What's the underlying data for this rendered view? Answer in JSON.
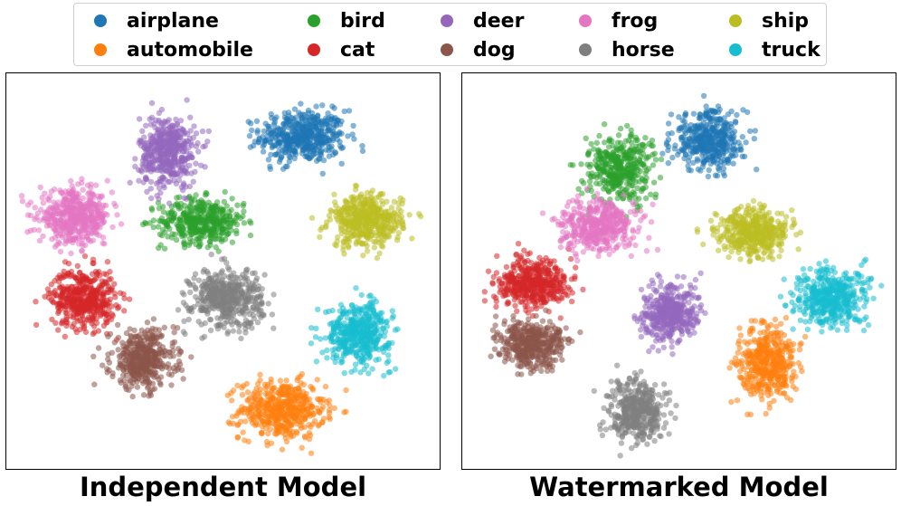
{
  "chart_data": [
    {
      "type": "scatter",
      "title": "Independent Model",
      "xlim": [
        0,
        100
      ],
      "ylim": [
        0,
        100
      ],
      "grid": false,
      "legend_placement": "top-center",
      "clusters": [
        {
          "name": "airplane",
          "color": "#1f77b4",
          "center": [
            69,
            85
          ],
          "spread": [
            12,
            8
          ],
          "count": 480
        },
        {
          "name": "automobile",
          "color": "#ff7f0e",
          "center": [
            64,
            14
          ],
          "spread": [
            12,
            9
          ],
          "count": 480
        },
        {
          "name": "bird",
          "color": "#2ca02c",
          "center": [
            45,
            63
          ],
          "spread": [
            12,
            7
          ],
          "count": 420
        },
        {
          "name": "cat",
          "color": "#d62728",
          "center": [
            17,
            43
          ],
          "spread": [
            9,
            9
          ],
          "count": 460
        },
        {
          "name": "deer",
          "color": "#9467bd",
          "center": [
            37,
            81
          ],
          "spread": [
            8,
            11
          ],
          "count": 460
        },
        {
          "name": "dog",
          "color": "#8c564b",
          "center": [
            31,
            27
          ],
          "spread": [
            9,
            9
          ],
          "count": 440
        },
        {
          "name": "frog",
          "color": "#e377c2",
          "center": [
            15,
            64
          ],
          "spread": [
            10,
            8
          ],
          "count": 480
        },
        {
          "name": "horse",
          "color": "#7f7f7f",
          "center": [
            51,
            43
          ],
          "spread": [
            10,
            9
          ],
          "count": 460
        },
        {
          "name": "ship",
          "color": "#bcbd22",
          "center": [
            84,
            63
          ],
          "spread": [
            10,
            8
          ],
          "count": 460
        },
        {
          "name": "truck",
          "color": "#17becf",
          "center": [
            82,
            34
          ],
          "spread": [
            9,
            9
          ],
          "count": 460
        }
      ]
    },
    {
      "type": "scatter",
      "title": "Watermarked Model",
      "xlim": [
        0,
        100
      ],
      "ylim": [
        0,
        100
      ],
      "grid": false,
      "legend_placement": "top-center",
      "clusters": [
        {
          "name": "airplane",
          "color": "#1f77b4",
          "center": [
            57,
            84
          ],
          "spread": [
            10,
            9
          ],
          "count": 420
        },
        {
          "name": "automobile",
          "color": "#ff7f0e",
          "center": [
            71,
            26
          ],
          "spread": [
            8,
            11
          ],
          "count": 440
        },
        {
          "name": "bird",
          "color": "#2ca02c",
          "center": [
            36,
            77
          ],
          "spread": [
            9,
            10
          ],
          "count": 400
        },
        {
          "name": "cat",
          "color": "#d62728",
          "center": [
            15,
            47
          ],
          "spread": [
            10,
            8
          ],
          "count": 440
        },
        {
          "name": "deer",
          "color": "#9467bd",
          "center": [
            48,
            39
          ],
          "spread": [
            8,
            9
          ],
          "count": 420
        },
        {
          "name": "dog",
          "color": "#8c564b",
          "center": [
            15,
            31
          ],
          "spread": [
            9,
            7
          ],
          "count": 420
        },
        {
          "name": "frog",
          "color": "#e377c2",
          "center": [
            31,
            62
          ],
          "spread": [
            11,
            8
          ],
          "count": 440
        },
        {
          "name": "horse",
          "color": "#7f7f7f",
          "center": [
            40,
            14
          ],
          "spread": [
            8,
            10
          ],
          "count": 420
        },
        {
          "name": "ship",
          "color": "#bcbd22",
          "center": [
            67,
            60
          ],
          "spread": [
            10,
            7
          ],
          "count": 420
        },
        {
          "name": "truck",
          "color": "#17becf",
          "center": [
            86,
            43
          ],
          "spread": [
            10,
            9
          ],
          "count": 440
        }
      ]
    }
  ],
  "legend": {
    "items": [
      {
        "label": "airplane",
        "color": "#1f77b4"
      },
      {
        "label": "automobile",
        "color": "#ff7f0e"
      },
      {
        "label": "bird",
        "color": "#2ca02c"
      },
      {
        "label": "cat",
        "color": "#d62728"
      },
      {
        "label": "deer",
        "color": "#9467bd"
      },
      {
        "label": "dog",
        "color": "#8c564b"
      },
      {
        "label": "frog",
        "color": "#e377c2"
      },
      {
        "label": "horse",
        "color": "#7f7f7f"
      },
      {
        "label": "ship",
        "color": "#bcbd22"
      },
      {
        "label": "truck",
        "color": "#17becf"
      }
    ]
  }
}
